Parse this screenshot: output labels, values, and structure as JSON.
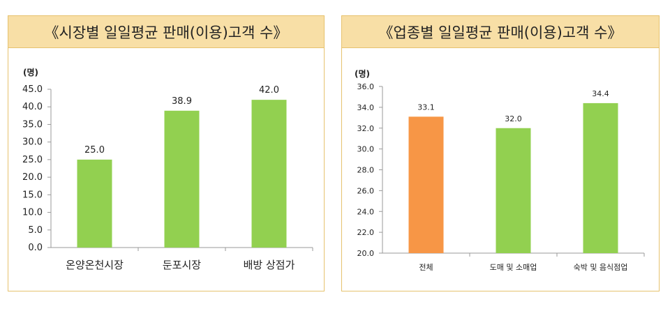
{
  "chart_data": [
    {
      "type": "bar",
      "title": "《시장별 일일평균 판매(이용)고객 수》",
      "ylabel": "(명)",
      "ylim": [
        0,
        45
      ],
      "yticks": [
        0,
        5,
        10,
        15,
        20,
        25,
        30,
        35,
        40,
        45
      ],
      "categories": [
        "온양온천시장",
        "둔포시장",
        "배방 상점가"
      ],
      "values": [
        25.0,
        38.9,
        42.0
      ],
      "colors": [
        "#92d050",
        "#92d050",
        "#92d050"
      ]
    },
    {
      "type": "bar",
      "title": "《업종별 일일평균 판매(이용)고객 수》",
      "ylabel": "(명)",
      "ylim": [
        20,
        36
      ],
      "yticks": [
        20,
        22,
        24,
        26,
        28,
        30,
        32,
        34,
        36
      ],
      "categories": [
        "전체",
        "도매 및 소매업",
        "숙박 및 음식점업"
      ],
      "values": [
        33.1,
        32.0,
        34.4
      ],
      "colors": [
        "#f79646",
        "#92d050",
        "#92d050"
      ]
    }
  ]
}
